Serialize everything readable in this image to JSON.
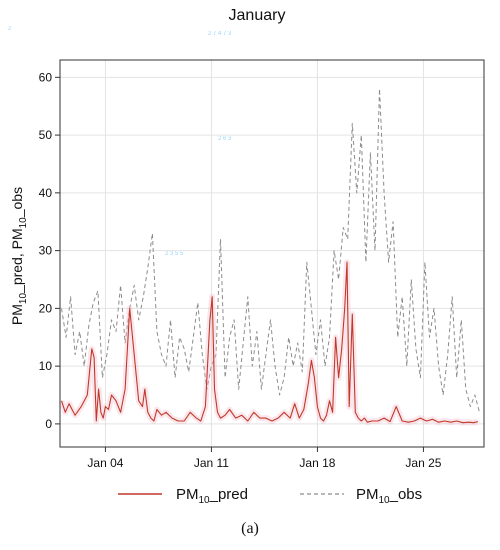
{
  "chart_data": {
    "type": "line",
    "title": "January",
    "xlabel": "",
    "ylabel": "PM10_pred, PM10_obs",
    "ylabel_parts": {
      "s1": "PM",
      "sub1": "10",
      "s2": "_pred, PM",
      "sub2": "10",
      "s3": "_obs"
    },
    "xlim": [
      0,
      28
    ],
    "ylim": [
      -4,
      63
    ],
    "x_ticks": [
      {
        "x": 3,
        "label": "Jan 04"
      },
      {
        "x": 10,
        "label": "Jan 11"
      },
      {
        "x": 17,
        "label": "Jan 18"
      },
      {
        "x": 24,
        "label": "Jan 25"
      }
    ],
    "y_ticks": [
      0,
      10,
      20,
      30,
      40,
      50,
      60
    ],
    "grid": true,
    "legend_position": "bottom",
    "series": [
      {
        "key": "pred",
        "label_parts": {
          "a": "PM",
          "sub": "10",
          "b": "_pred"
        },
        "color": "#c0392b",
        "dash": "none",
        "x": [
          0.1,
          0.35,
          0.6,
          1,
          1.4,
          1.8,
          2.1,
          2.25,
          2.4,
          2.55,
          2.7,
          2.85,
          3,
          3.2,
          3.4,
          3.7,
          4,
          4.3,
          4.6,
          4.9,
          5.2,
          5.45,
          5.6,
          5.8,
          6,
          6.2,
          6.4,
          6.7,
          7,
          7.4,
          7.8,
          8.2,
          8.6,
          9,
          9.3,
          9.6,
          9.9,
          10.05,
          10.2,
          10.4,
          10.6,
          10.9,
          11.2,
          11.6,
          12,
          12.4,
          12.8,
          13.2,
          13.6,
          14,
          14.4,
          14.8,
          15.2,
          15.5,
          15.8,
          16.1,
          16.4,
          16.6,
          16.8,
          17,
          17.2,
          17.4,
          17.6,
          17.8,
          18,
          18.2,
          18.4,
          18.6,
          18.8,
          18.95,
          19.1,
          19.3,
          19.5,
          19.7,
          19.9,
          20.1,
          20.3,
          20.6,
          21,
          21.4,
          21.8,
          22.2,
          22.6,
          23,
          23.4,
          23.8,
          24.2,
          24.6,
          25,
          25.4,
          25.8,
          26.2,
          26.6,
          27,
          27.3,
          27.6
        ],
        "y": [
          4,
          2,
          3.5,
          1.5,
          3,
          5,
          13,
          11.5,
          0.5,
          6,
          2,
          1,
          3,
          2.5,
          5,
          4,
          2,
          6,
          20,
          12,
          4,
          3,
          6,
          2,
          1,
          0.5,
          2.5,
          1.5,
          2,
          1,
          0.5,
          0.5,
          2,
          1,
          0.5,
          3,
          18,
          22,
          6,
          2,
          1,
          1.5,
          2.5,
          1,
          1.5,
          0.5,
          2,
          1,
          1,
          0.5,
          1,
          2,
          1,
          3.5,
          1,
          2.5,
          7,
          11,
          8,
          3,
          1,
          0.5,
          1.5,
          4,
          2,
          15,
          8,
          13,
          20,
          28,
          3,
          19,
          2,
          1,
          0.5,
          1,
          0.3,
          0.5,
          0.5,
          1,
          0.4,
          3,
          0.5,
          0.3,
          0.5,
          1,
          0.5,
          0.8,
          0.3,
          0.5,
          0.3,
          0.5,
          0.2,
          0.3,
          0.2,
          0.4
        ]
      },
      {
        "key": "obs",
        "label_parts": {
          "a": "PM",
          "sub": "10",
          "b": "_obs"
        },
        "color": "#8c8c8c",
        "dash": "4,3",
        "x": [
          0.1,
          0.4,
          0.7,
          1,
          1.3,
          1.6,
          1.9,
          2.2,
          2.5,
          2.8,
          3.1,
          3.4,
          3.7,
          4,
          4.3,
          4.6,
          4.9,
          5.2,
          5.5,
          5.8,
          6.1,
          6.4,
          6.7,
          7,
          7.3,
          7.6,
          7.9,
          8.2,
          8.5,
          8.8,
          9.1,
          9.4,
          9.7,
          10,
          10.3,
          10.6,
          10.9,
          11.2,
          11.5,
          11.8,
          12.1,
          12.4,
          12.7,
          13,
          13.3,
          13.6,
          13.9,
          14.2,
          14.5,
          14.8,
          15.1,
          15.4,
          15.7,
          16,
          16.3,
          16.6,
          16.9,
          17.2,
          17.5,
          17.8,
          18.1,
          18.4,
          18.7,
          19,
          19.3,
          19.6,
          19.9,
          20.2,
          20.5,
          20.8,
          21.1,
          21.4,
          21.7,
          22,
          22.3,
          22.6,
          22.9,
          23.2,
          23.5,
          23.8,
          24.1,
          24.4,
          24.7,
          25,
          25.3,
          25.6,
          25.9,
          26.2,
          26.5,
          26.8,
          27.1,
          27.4,
          27.7
        ],
        "y": [
          20,
          15,
          22,
          12,
          16,
          10,
          17,
          21,
          23,
          8,
          12,
          18,
          16,
          24,
          14,
          20,
          24,
          18,
          22,
          27,
          33,
          16,
          12,
          10,
          18,
          8,
          15,
          13,
          9,
          15,
          21,
          12,
          6,
          10,
          12,
          32,
          8,
          15,
          18,
          6,
          14,
          22,
          10,
          16,
          6,
          12,
          18,
          10,
          5,
          8,
          15,
          10,
          14,
          9,
          28,
          20,
          12,
          18,
          10,
          15,
          30,
          25,
          34,
          32,
          52,
          40,
          50,
          28,
          47,
          30,
          58,
          40,
          28,
          35,
          15,
          22,
          10,
          25,
          13,
          8,
          28,
          15,
          20,
          10,
          5,
          12,
          22,
          8,
          18,
          6,
          3,
          5,
          2
        ]
      }
    ]
  },
  "axis_marks": {
    "top_left": "2",
    "top_center": "2 7 4 7 3",
    "upper_mid": "2 6 3",
    "mid": "2 3 5 5"
  },
  "caption": "(a)"
}
